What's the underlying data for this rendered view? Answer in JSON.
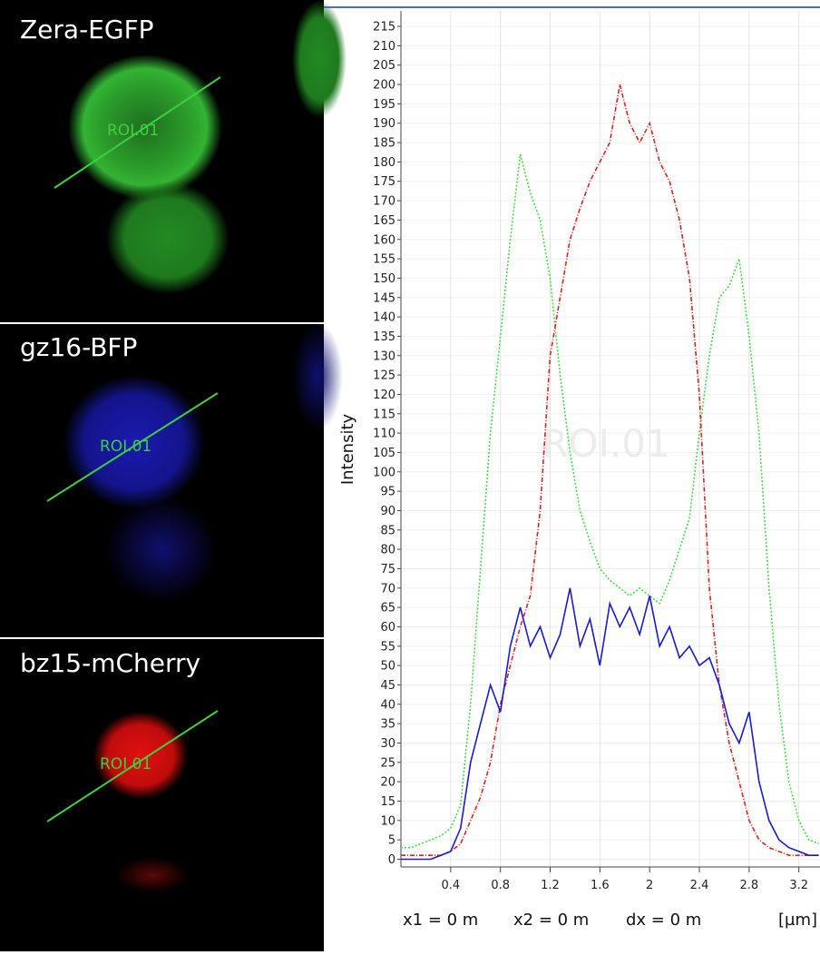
{
  "panels": [
    {
      "label": "Zera-EGFP",
      "roi": "ROI.01"
    },
    {
      "label": "gz16-BFP",
      "roi": "ROI.01"
    },
    {
      "label": "bz15-mCherry",
      "roi": "ROI.01"
    }
  ],
  "chart_data": {
    "type": "line",
    "ylabel": "Intensity",
    "watermark": "ROI.01",
    "xunit": "[µm]",
    "cursor": [
      "x1 = 0 m",
      "x2 = 0 m",
      "dx = 0 m"
    ],
    "x": [
      0,
      0.08,
      0.16,
      0.24,
      0.32,
      0.4,
      0.48,
      0.56,
      0.64,
      0.72,
      0.8,
      0.88,
      0.96,
      1.04,
      1.12,
      1.2,
      1.28,
      1.36,
      1.44,
      1.52,
      1.6,
      1.68,
      1.76,
      1.84,
      1.92,
      2,
      2.08,
      2.16,
      2.24,
      2.32,
      2.4,
      2.48,
      2.56,
      2.64,
      2.72,
      2.8,
      2.88,
      2.96,
      3.04,
      3.12,
      3.2,
      3.28,
      3.36
    ],
    "series": [
      {
        "name": "Zera-EGFP",
        "color": "#44dd44",
        "dash": "2,2",
        "values": [
          3,
          3,
          4,
          5,
          6,
          8,
          14,
          40,
          75,
          110,
          135,
          160,
          182,
          172,
          165,
          150,
          125,
          105,
          90,
          82,
          75,
          72,
          70,
          68,
          70,
          68,
          66,
          72,
          80,
          88,
          110,
          130,
          145,
          148,
          155,
          135,
          110,
          70,
          40,
          20,
          10,
          5,
          4
        ]
      },
      {
        "name": "bz15-mCherry",
        "color": "#e02020",
        "dash": "5,2,1,2",
        "values": [
          1,
          1,
          1,
          1,
          1,
          2,
          4,
          10,
          16,
          25,
          40,
          50,
          60,
          68,
          90,
          130,
          145,
          160,
          168,
          175,
          180,
          185,
          200,
          190,
          185,
          190,
          180,
          175,
          165,
          150,
          120,
          70,
          45,
          30,
          20,
          10,
          5,
          3,
          2,
          1,
          1,
          1,
          1
        ]
      },
      {
        "name": "gz16-BFP",
        "color": "#1a1ad0",
        "dash": "none",
        "values": [
          0,
          0,
          0,
          0,
          1,
          2,
          8,
          25,
          35,
          45,
          38,
          55,
          65,
          55,
          60,
          52,
          58,
          70,
          55,
          62,
          50,
          66,
          60,
          65,
          58,
          68,
          55,
          60,
          52,
          55,
          50,
          52,
          45,
          35,
          30,
          38,
          20,
          10,
          5,
          3,
          2,
          1,
          1
        ]
      }
    ],
    "xlim": [
      0,
      3.37
    ],
    "xticks": [
      0.4,
      0.8,
      1.2,
      1.6,
      2,
      2.4,
      2.8,
      3.2
    ],
    "ylim": [
      -2,
      219
    ],
    "yticks": [
      0,
      5,
      10,
      15,
      20,
      25,
      30,
      35,
      40,
      45,
      50,
      55,
      60,
      65,
      70,
      75,
      80,
      85,
      90,
      95,
      100,
      105,
      110,
      115,
      120,
      125,
      130,
      135,
      140,
      145,
      150,
      155,
      160,
      165,
      170,
      175,
      180,
      185,
      190,
      195,
      200,
      205,
      210,
      215
    ],
    "grid": true
  }
}
